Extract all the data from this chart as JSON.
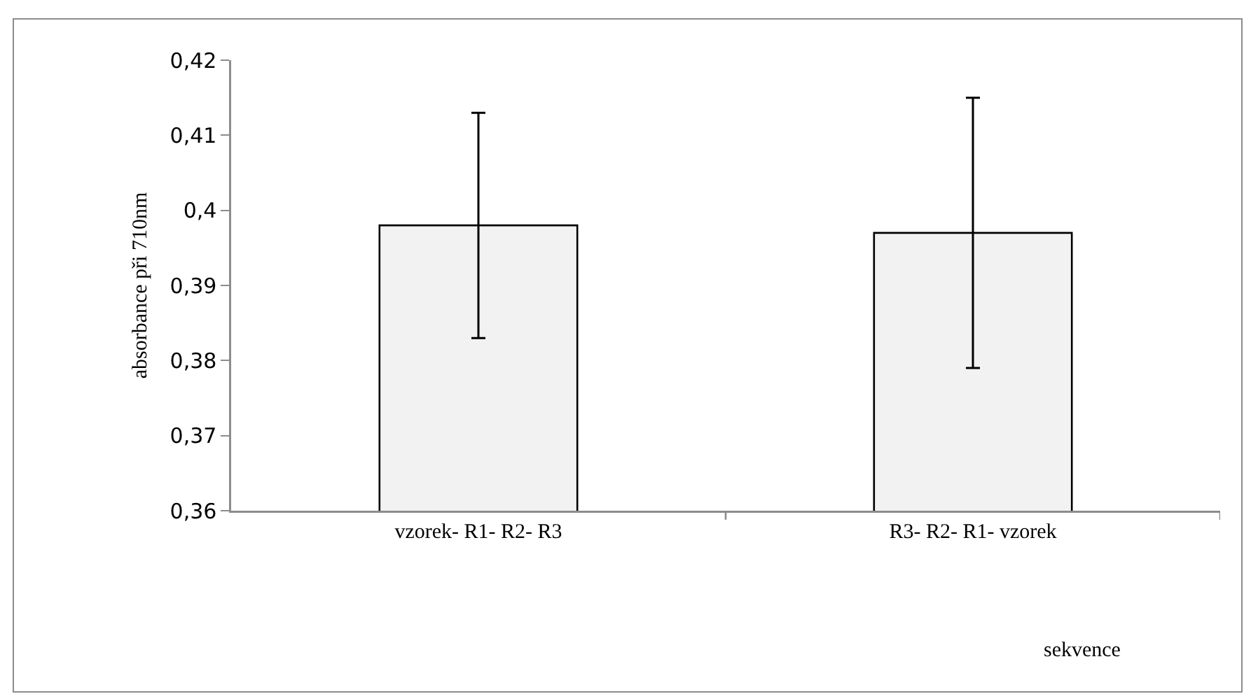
{
  "chart_data": {
    "type": "bar",
    "categories": [
      "vzorek- R1- R2- R3",
      "R3- R2- R1- vzorek"
    ],
    "values": [
      0.398,
      0.397
    ],
    "errors": [
      0.015,
      0.018
    ],
    "color": "#f2f2f2",
    "xlabel": "sekvence",
    "ylabel": "absorbance při 710nm",
    "ylim": [
      0.36,
      0.42
    ],
    "yticks": [
      {
        "value": 0.36,
        "label": "0,36"
      },
      {
        "value": 0.37,
        "label": "0,37"
      },
      {
        "value": 0.38,
        "label": "0,38"
      },
      {
        "value": 0.39,
        "label": "0,39"
      },
      {
        "value": 0.4,
        "label": "0,4"
      },
      {
        "value": 0.41,
        "label": "0,41"
      },
      {
        "value": 0.42,
        "label": "0,42"
      }
    ],
    "grid": false
  }
}
